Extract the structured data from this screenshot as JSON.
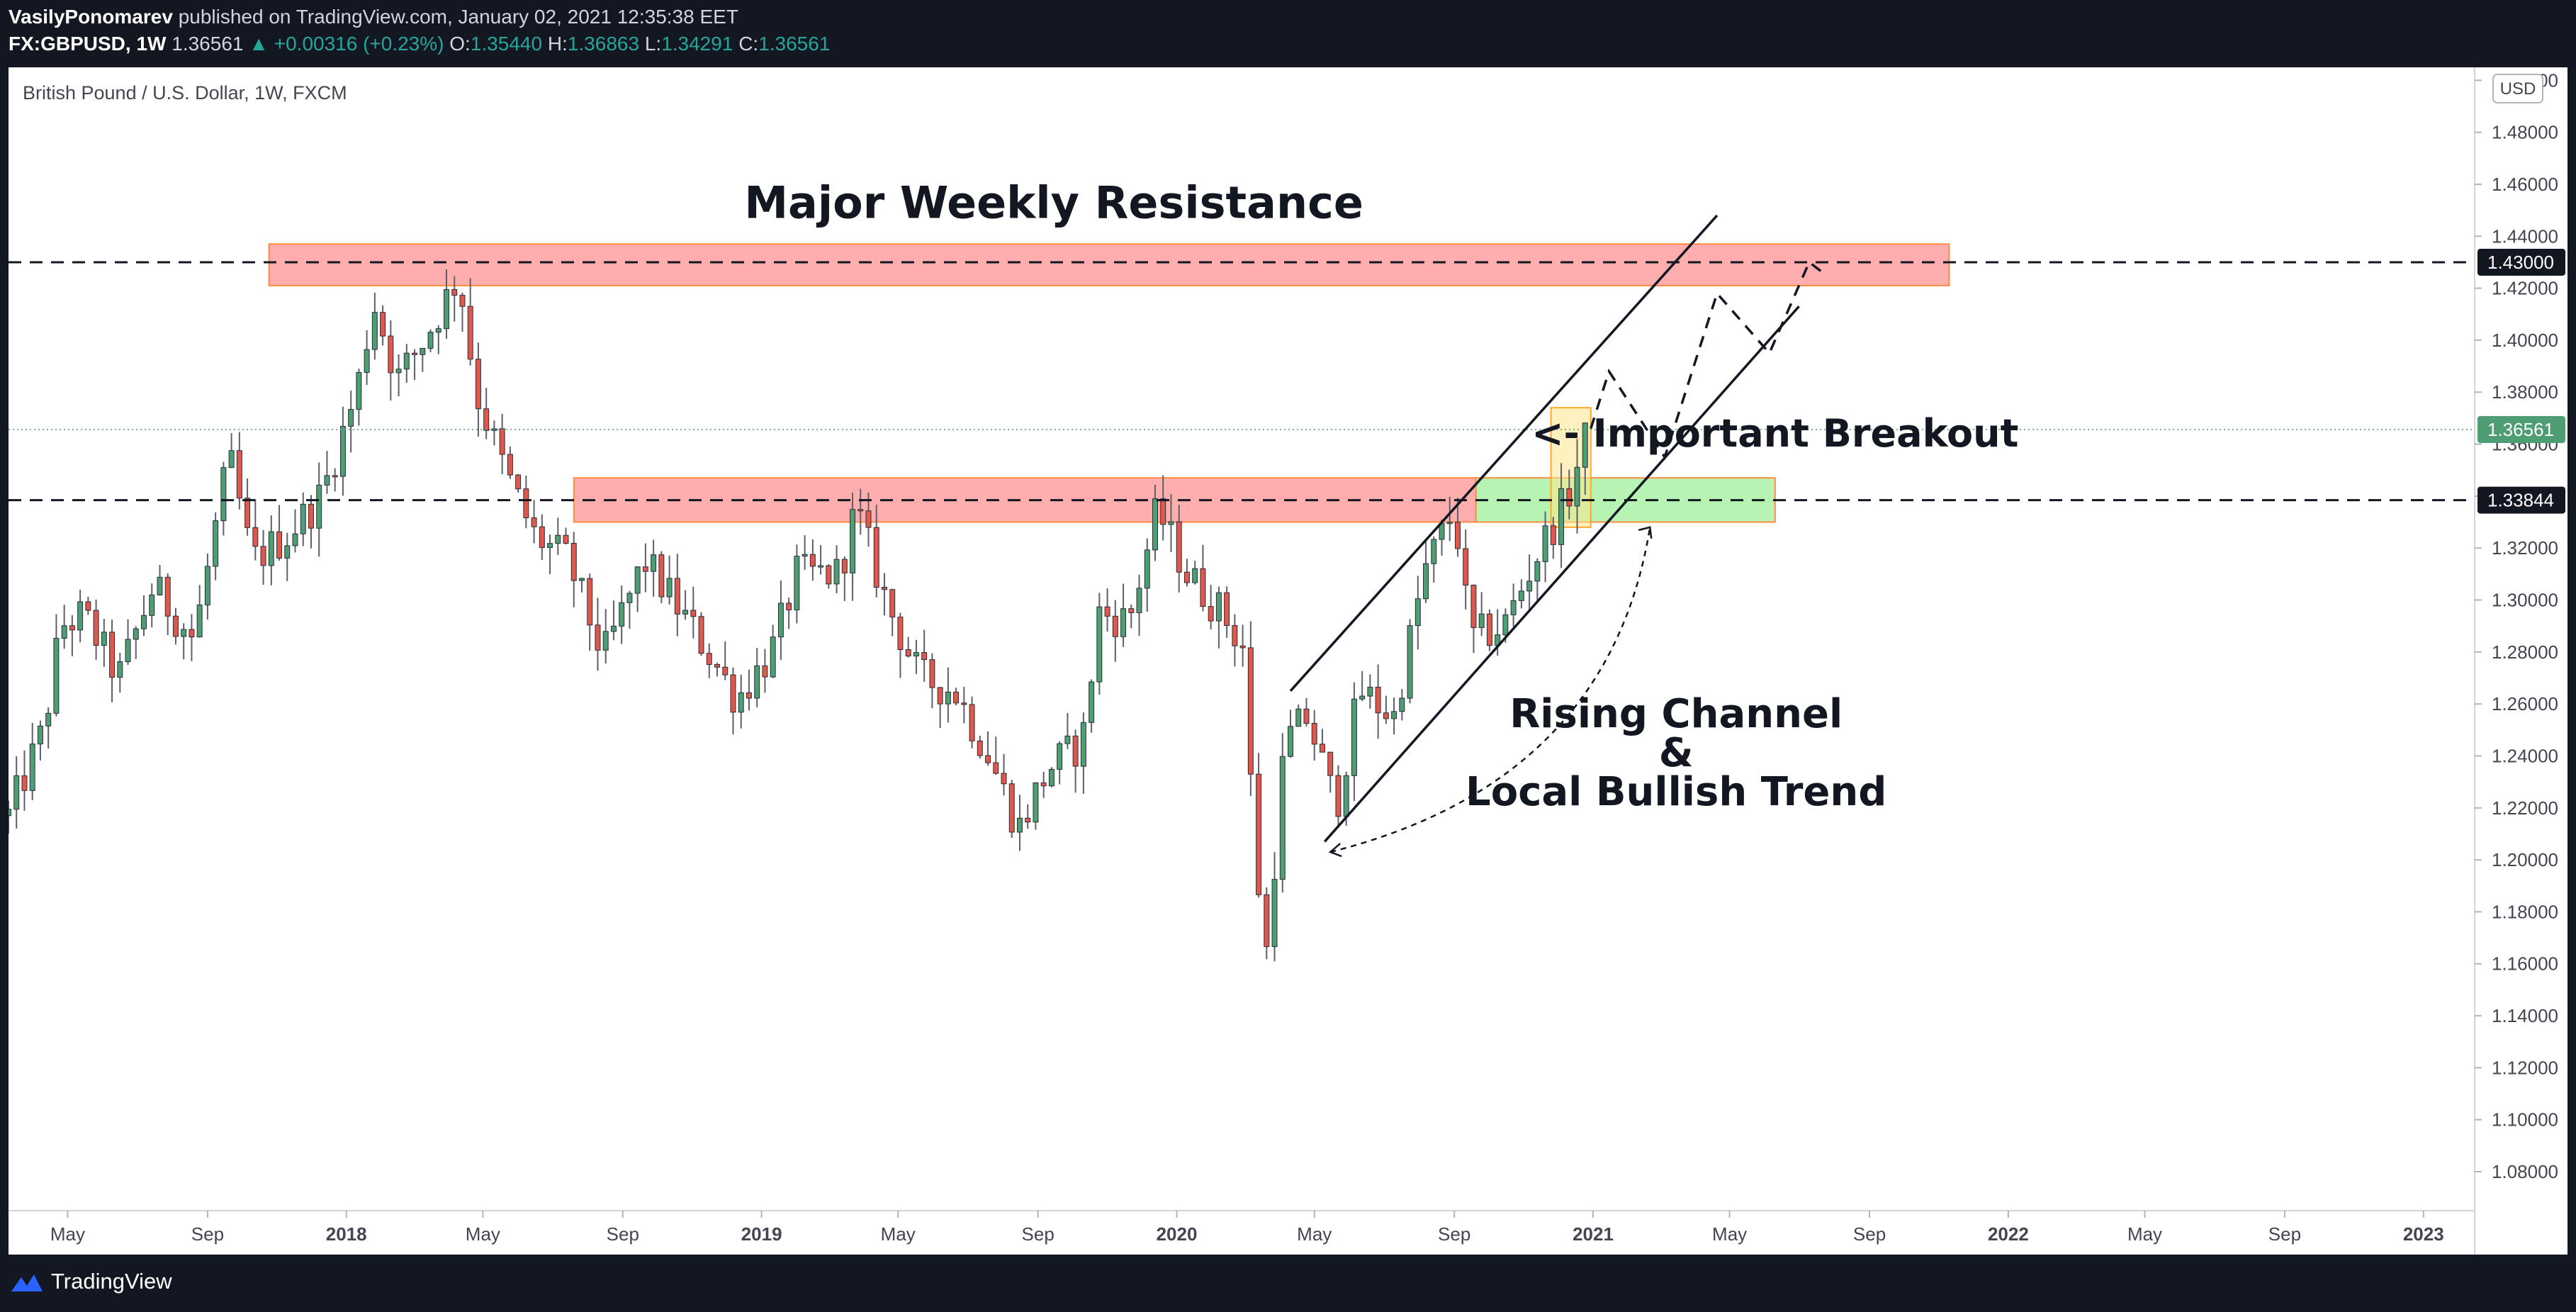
{
  "header": {
    "author": "VasilyPonomarev",
    "published": "published on TradingView.com, January 02, 2021 12:35:38 EET",
    "symbol": "FX:GBPUSD, 1W",
    "last": "1.36561",
    "change": "▲ +0.00316 (+0.23%)",
    "o_label": "O:",
    "o_value": "1.35440",
    "h_label": "H:",
    "h_value": "1.36863",
    "l_label": "L:",
    "l_value": "1.34291",
    "c_label": "C:",
    "c_value": "1.36561"
  },
  "footer": {
    "brand": "TradingView",
    "logo_icon": "tradingview-logo-icon"
  },
  "colors": {
    "background": "#ffffff",
    "up": "#4f9e73",
    "down": "#e0574c",
    "resistance_zone": "#ff9a9a",
    "support_zone": "#a5f0a0",
    "highlight_zone": "#ffe58a",
    "last_price_badge": "#4f9e73",
    "level_badge": "#131722"
  },
  "chart_data": {
    "type": "candlestick",
    "title": "British Pound / U.S. Dollar, 1W, FXCM",
    "currency": "USD",
    "ylim": [
      1.065,
      1.505
    ],
    "y_ticks": [
      1.08,
      1.1,
      1.12,
      1.14,
      1.16,
      1.18,
      1.2,
      1.22,
      1.24,
      1.26,
      1.28,
      1.3,
      1.32,
      1.34,
      1.36,
      1.38,
      1.4,
      1.42,
      1.44,
      1.46,
      1.48,
      1.5
    ],
    "xlim": [
      "2017-03-10",
      "2023-02-15"
    ],
    "x_ticks": [
      {
        "date": "2017-05-01",
        "label": "May"
      },
      {
        "date": "2017-09-01",
        "label": "Sep"
      },
      {
        "date": "2018-01-01",
        "label": "2018"
      },
      {
        "date": "2018-05-01",
        "label": "May"
      },
      {
        "date": "2018-09-01",
        "label": "Sep"
      },
      {
        "date": "2019-01-01",
        "label": "2019"
      },
      {
        "date": "2019-05-01",
        "label": "May"
      },
      {
        "date": "2019-09-01",
        "label": "Sep"
      },
      {
        "date": "2020-01-01",
        "label": "2020"
      },
      {
        "date": "2020-05-01",
        "label": "May"
      },
      {
        "date": "2020-09-01",
        "label": "Sep"
      },
      {
        "date": "2021-01-01",
        "label": "2021"
      },
      {
        "date": "2021-05-01",
        "label": "May"
      },
      {
        "date": "2021-09-01",
        "label": "Sep"
      },
      {
        "date": "2022-01-01",
        "label": "2022"
      },
      {
        "date": "2022-05-01",
        "label": "May"
      },
      {
        "date": "2022-09-01",
        "label": "Sep"
      },
      {
        "date": "2023-01-01",
        "label": "2023"
      }
    ],
    "close_path": [
      [
        "2017-03-10",
        1.217
      ],
      [
        "2017-04-10",
        1.25
      ],
      [
        "2017-04-25",
        1.29
      ],
      [
        "2017-05-15",
        1.294
      ],
      [
        "2017-06-15",
        1.27
      ],
      [
        "2017-07-15",
        1.305
      ],
      [
        "2017-08-20",
        1.285
      ],
      [
        "2017-09-20",
        1.355
      ],
      [
        "2017-10-10",
        1.315
      ],
      [
        "2017-11-10",
        1.325
      ],
      [
        "2017-12-10",
        1.34
      ],
      [
        "2018-01-10",
        1.38
      ],
      [
        "2018-01-25",
        1.415
      ],
      [
        "2018-02-15",
        1.385
      ],
      [
        "2018-03-10",
        1.4
      ],
      [
        "2018-04-10",
        1.425
      ],
      [
        "2018-04-25",
        1.38
      ],
      [
        "2018-05-20",
        1.35
      ],
      [
        "2018-06-15",
        1.325
      ],
      [
        "2018-07-15",
        1.315
      ],
      [
        "2018-08-15",
        1.278
      ],
      [
        "2018-09-20",
        1.315
      ],
      [
        "2018-10-15",
        1.3
      ],
      [
        "2018-11-15",
        1.28
      ],
      [
        "2018-12-10",
        1.262
      ],
      [
        "2019-01-10",
        1.28
      ],
      [
        "2019-02-01",
        1.31
      ],
      [
        "2019-03-10",
        1.31
      ],
      [
        "2019-03-25",
        1.335
      ],
      [
        "2019-04-20",
        1.3
      ],
      [
        "2019-05-20",
        1.27
      ],
      [
        "2019-06-20",
        1.265
      ],
      [
        "2019-07-20",
        1.24
      ],
      [
        "2019-08-15",
        1.212
      ],
      [
        "2019-09-10",
        1.235
      ],
      [
        "2019-10-10",
        1.245
      ],
      [
        "2019-10-25",
        1.295
      ],
      [
        "2019-11-20",
        1.292
      ],
      [
        "2019-12-15",
        1.335
      ],
      [
        "2020-01-10",
        1.31
      ],
      [
        "2020-02-10",
        1.295
      ],
      [
        "2020-02-28",
        1.282
      ],
      [
        "2020-03-10",
        1.2
      ],
      [
        "2020-03-20",
        1.165
      ],
      [
        "2020-04-05",
        1.245
      ],
      [
        "2020-04-25",
        1.255
      ],
      [
        "2020-05-20",
        1.22
      ],
      [
        "2020-06-10",
        1.265
      ],
      [
        "2020-07-10",
        1.255
      ],
      [
        "2020-08-05",
        1.31
      ],
      [
        "2020-09-01",
        1.335
      ],
      [
        "2020-09-15",
        1.285
      ],
      [
        "2020-10-15",
        1.29
      ],
      [
        "2020-11-10",
        1.315
      ],
      [
        "2020-12-10",
        1.34
      ],
      [
        "2020-12-28",
        1.36561
      ]
    ],
    "candles_generated": "weekly OHLC candles following close_path",
    "levels": [
      {
        "price": 1.43,
        "label": "1.43000",
        "style": "dashed"
      },
      {
        "price": 1.33844,
        "label": "1.33844",
        "style": "dashed"
      }
    ],
    "last_price": {
      "price": 1.36561,
      "label": "1.36561"
    },
    "zones": [
      {
        "name": "resistance-zone-upper",
        "x0": "2017-10-25",
        "x1": "2021-11-10",
        "y0": 1.421,
        "y1": 1.437
      },
      {
        "name": "resistance-zone-lower",
        "x0": "2018-07-20",
        "x1": "2020-09-20",
        "y0": 1.33,
        "y1": 1.347
      },
      {
        "name": "support-zone",
        "x0": "2020-09-20",
        "x1": "2021-06-10",
        "y0": 1.33,
        "y1": 1.347
      },
      {
        "name": "breakout-highlight-zone",
        "x0": "2020-11-25",
        "x1": "2020-12-30",
        "y0": 1.328,
        "y1": 1.374
      }
    ],
    "channel_lines": [
      {
        "x0": "2020-04-10",
        "y0": 1.265,
        "x1": "2021-04-20",
        "y1": 1.448
      },
      {
        "x0": "2020-05-10",
        "y0": 1.207,
        "x1": "2021-07-01",
        "y1": 1.413
      }
    ],
    "projection_path": [
      [
        "2020-12-30",
        1.366
      ],
      [
        "2021-01-15",
        1.388
      ],
      [
        "2021-03-05",
        1.355
      ],
      [
        "2021-04-20",
        1.418
      ],
      [
        "2021-06-05",
        1.395
      ],
      [
        "2021-07-10",
        1.43
      ],
      [
        "2021-07-25",
        1.425
      ]
    ],
    "curved_arrow": {
      "from": [
        "2020-05-15",
        1.203
      ],
      "ctrl": [
        "2021-01-15",
        1.23
      ],
      "to": [
        "2021-02-20",
        1.328
      ]
    },
    "annotations": [
      {
        "name": "major-weekly-resistance-label",
        "text": "Major Weekly Resistance",
        "x": "2019-09-15",
        "y": 1.447,
        "size": 62
      },
      {
        "name": "important-breakout-label",
        "text": "<- Important Breakout",
        "x": "2021-06-10",
        "y": 1.359,
        "size": 54
      },
      {
        "name": "rising-channel-label",
        "text": "Rising Channel",
        "x": "2021-03-15",
        "y": 1.251,
        "size": 56
      },
      {
        "name": "ampersand-label",
        "text": "&",
        "x": "2021-03-15",
        "y": 1.236,
        "size": 56
      },
      {
        "name": "local-bullish-trend-label",
        "text": "Local Bullish Trend",
        "x": "2021-03-15",
        "y": 1.221,
        "size": 56
      }
    ]
  }
}
